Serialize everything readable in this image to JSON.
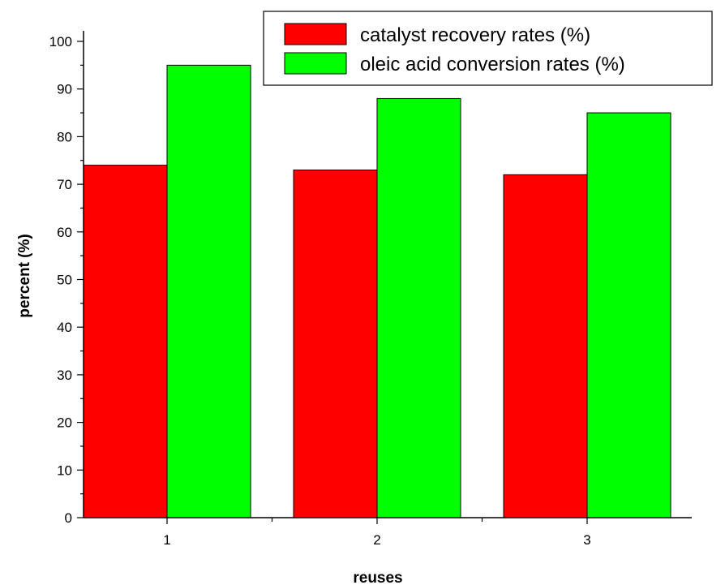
{
  "chart_data": {
    "type": "bar",
    "categories": [
      "1",
      "2",
      "3"
    ],
    "series": [
      {
        "name": "catalyst recovery rates (%)",
        "values": [
          74,
          73,
          72
        ],
        "color": "#ff0000"
      },
      {
        "name": "oleic acid conversion rates (%)",
        "values": [
          95,
          88,
          85
        ],
        "color": "#00ff00"
      }
    ],
    "xlabel": "reuses",
    "ylabel": "percent (%)",
    "ylim": [
      0,
      100
    ],
    "yticks": [
      0,
      10,
      20,
      30,
      40,
      50,
      60,
      70,
      80,
      90,
      100
    ],
    "grid": false,
    "legend_position": "top-right"
  }
}
